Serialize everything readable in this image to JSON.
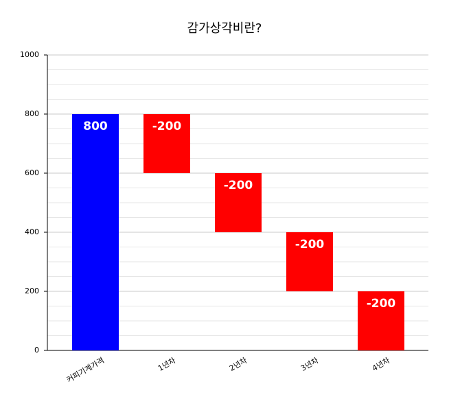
{
  "chart_data": {
    "type": "waterfall",
    "title": "감가상각비란?",
    "categories": [
      "커피기계가격",
      "1년차",
      "2년차",
      "3년차",
      "4년차"
    ],
    "values": [
      800,
      -200,
      -200,
      -200,
      -200
    ],
    "colors": [
      "#0000ff",
      "#ff0000",
      "#ff0000",
      "#ff0000",
      "#ff0000"
    ],
    "ylim": [
      0,
      1000
    ],
    "yticks": [
      0,
      200,
      400,
      600,
      800,
      1000
    ],
    "minor_yticks": [
      50,
      100,
      150,
      250,
      300,
      350,
      450,
      500,
      550,
      650,
      700,
      750,
      850,
      900,
      950
    ],
    "grid": true
  }
}
